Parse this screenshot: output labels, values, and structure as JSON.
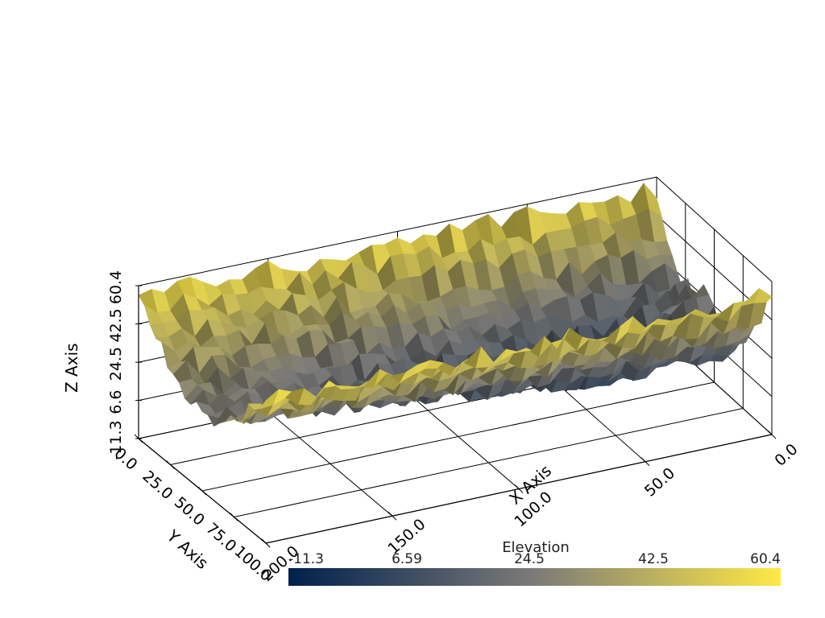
{
  "chart_data": {
    "type": "surface3d",
    "title": "",
    "x_axis": {
      "label": "X Axis",
      "ticks": [
        "0.0",
        "50.0",
        "100.0",
        "150.0",
        "200.0"
      ],
      "range": [
        0,
        200
      ]
    },
    "y_axis": {
      "label": "Y Axis",
      "ticks": [
        "0.0",
        "25.0",
        "50.0",
        "75.0",
        "100.0"
      ],
      "range": [
        0,
        100
      ]
    },
    "z_axis": {
      "label": "Z Axis",
      "ticks": [
        "-11.3",
        "6.6",
        "24.5",
        "42.5",
        "60.4"
      ],
      "range": [
        -11.3,
        60.4
      ]
    },
    "grid": true,
    "scalar_name": "Elevation",
    "colorbar": {
      "title": "Elevation",
      "ticks": [
        "-11.3",
        "6.59",
        "24.5",
        "42.5",
        "60.4"
      ],
      "range": [
        -11.3,
        60.4
      ],
      "colors": [
        "#00204c",
        "#7c7b78",
        "#ffe945"
      ],
      "placement": "bottom"
    },
    "surface": {
      "description_values": "valley profile: high ridges along y≈0 and y≈100, low channel near y≈50 at large x",
      "x_samples": [
        0,
        25,
        50,
        75,
        100,
        125,
        150,
        175,
        200
      ],
      "y_samples": [
        0,
        12.5,
        25,
        37.5,
        50,
        62.5,
        75,
        87.5,
        100
      ],
      "peak_value": 60.4,
      "min_value": -11.3
    }
  }
}
